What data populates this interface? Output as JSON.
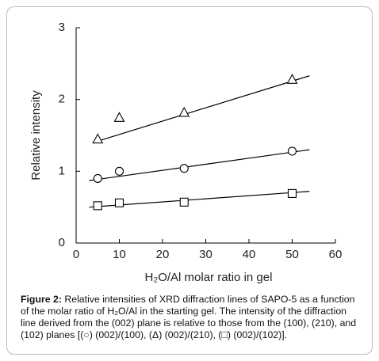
{
  "chart_data": {
    "type": "scatter",
    "x_label": "H₂O/Al molar ratio in gel",
    "y_label": "Relative intensity",
    "x": [
      5,
      10,
      25,
      50
    ],
    "series": [
      {
        "marker": "triangle",
        "color": "#000000",
        "values": [
          1.45,
          1.75,
          1.82,
          2.28
        ],
        "fit": {
          "x": [
            5,
            54
          ],
          "y": [
            1.42,
            2.33
          ]
        }
      },
      {
        "marker": "circle",
        "color": "#000000",
        "values": [
          0.9,
          1.0,
          1.04,
          1.28
        ],
        "fit": {
          "x": [
            3,
            54
          ],
          "y": [
            0.87,
            1.3
          ]
        }
      },
      {
        "marker": "square",
        "color": "#000000",
        "values": [
          0.52,
          0.56,
          0.57,
          0.69
        ],
        "fit": {
          "x": [
            3,
            54
          ],
          "y": [
            0.5,
            0.72
          ]
        }
      }
    ],
    "xlim": [
      0,
      60
    ],
    "xticks": [
      0,
      10,
      20,
      30,
      40,
      50,
      60
    ],
    "ylim": [
      0,
      3
    ],
    "yticks": [
      0,
      1,
      2,
      3
    ],
    "grid": false
  },
  "caption": {
    "label": "Figure 2:",
    "text": "Relative intensities of XRD diffraction lines of SAPO-5 as a function of the molar ratio of H₂O/Al in the starting gel. The intensity of the diffraction line derived from the (002) plane is relative to those from the (100), (210), and (102) planes [(○) (002)/(100), (Δ) (002)/(210), (□) (002)/(102)]."
  }
}
